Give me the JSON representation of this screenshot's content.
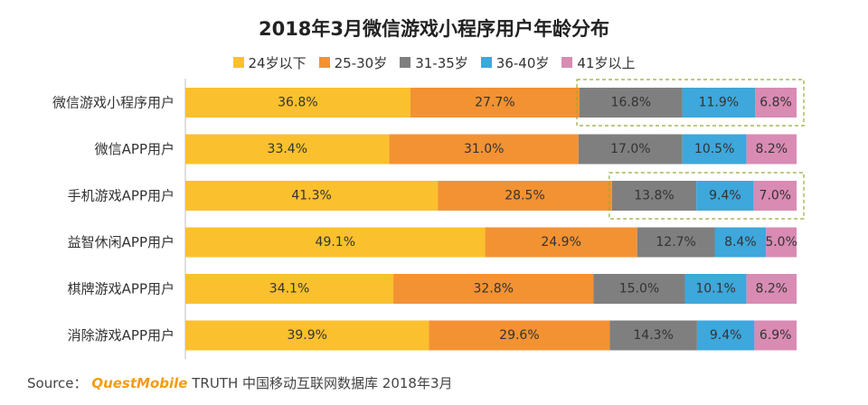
{
  "title": "2018年3月微信游戏小程序用户年龄分布",
  "source": {
    "prefix": "Source：",
    "brand": "QuestMobile",
    "text": "TRUTH 中国移动互联网数据库 2018年3月"
  },
  "chart_data": {
    "type": "bar",
    "orientation": "horizontal",
    "stacked": "100%",
    "title": "2018年3月微信游戏小程序用户年龄分布",
    "legend_position": "top",
    "grid": false,
    "categories": [
      "微信游戏小程序用户",
      "微信APP用户",
      "手机游戏APP用户",
      "益智休闲APP用户",
      "棋牌游戏APP用户",
      "消除游戏APP用户"
    ],
    "series": [
      {
        "name": "24岁以下",
        "color": "#FBC02D",
        "values": [
          36.8,
          33.4,
          41.3,
          49.1,
          34.1,
          39.9
        ]
      },
      {
        "name": "25-30岁",
        "color": "#F39233",
        "values": [
          27.7,
          31.0,
          28.5,
          24.9,
          32.8,
          29.6
        ]
      },
      {
        "name": "31-35岁",
        "color": "#7F7F7F",
        "values": [
          16.8,
          17.0,
          13.8,
          12.7,
          15.0,
          14.3
        ]
      },
      {
        "name": "36-40岁",
        "color": "#3EA7DB",
        "values": [
          11.9,
          10.5,
          9.4,
          8.4,
          10.1,
          9.4
        ]
      },
      {
        "name": "41岁以上",
        "color": "#D98BB3",
        "values": [
          6.8,
          8.2,
          7.0,
          5.0,
          8.2,
          6.9
        ]
      }
    ],
    "data_labels": [
      [
        "36.8%",
        "27.7%",
        "16.8%",
        "11.9%",
        "6.8%"
      ],
      [
        "33.4%",
        "31.0%",
        "17.0%",
        "10.5%",
        "8.2%"
      ],
      [
        "41.3%",
        "28.5%",
        "13.8%",
        "9.4%",
        "7.0%"
      ],
      [
        "49.1%",
        "24.9%",
        "12.7%",
        "8.4%",
        "5.0%"
      ],
      [
        "34.1%",
        "32.8%",
        "15.0%",
        "10.1%",
        "8.2%"
      ],
      [
        "39.9%",
        "29.6%",
        "14.3%",
        "9.4%",
        "6.9%"
      ]
    ],
    "highlights": [
      {
        "category_index": 0,
        "series_from": 2
      },
      {
        "category_index": 2,
        "series_from": 2
      }
    ],
    "axis_color": "#BFBFBF"
  }
}
